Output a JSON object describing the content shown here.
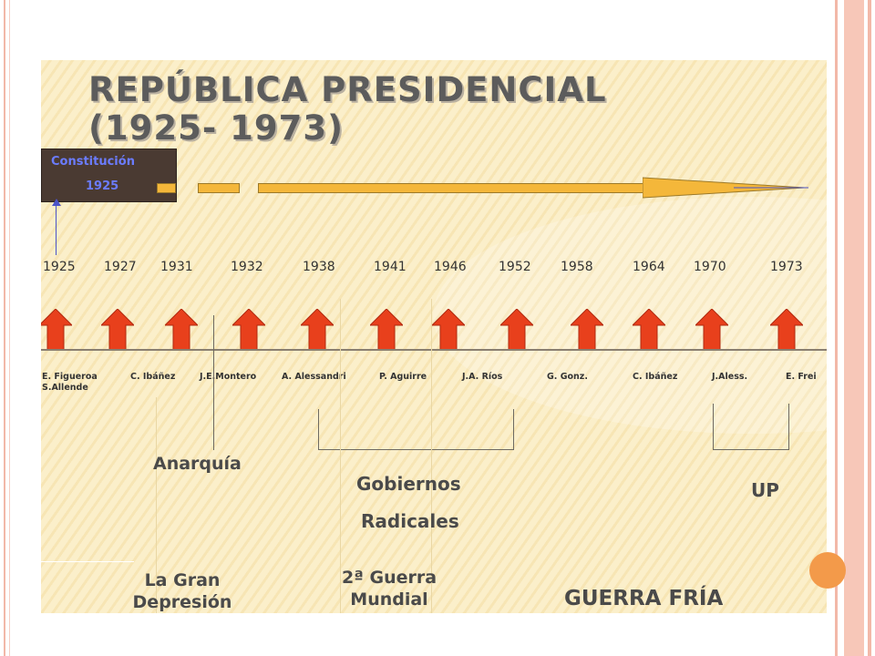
{
  "title": {
    "line1": "REPÚBLICA PRESIDENCIAL",
    "line2": "(1925- 1973)"
  },
  "constitution": {
    "label": "Constitución",
    "year": "1925"
  },
  "years": [
    "1925",
    "1927",
    "1931",
    "1932",
    "1938",
    "1941",
    "1946",
    "1952",
    "1958",
    "1964",
    "1970",
    "1973"
  ],
  "presidents": [
    [
      "E. Figueroa",
      "S.Allende"
    ],
    [
      "C. Ibáñez"
    ],
    [
      "J.E.Montero"
    ],
    [
      "A. Alessandri"
    ],
    [
      "P. Aguirre"
    ],
    [
      "J.A. Ríos"
    ],
    [
      "G. Gonz."
    ],
    [
      "C. Ibáñez"
    ],
    [
      "J.Aless."
    ],
    [
      "E. Frei"
    ]
  ],
  "labels": {
    "anarquia": "Anarquía",
    "radicales_1": "Gobiernos",
    "radicales_2": "Radicales",
    "up": "UP"
  },
  "periods": {
    "depresion_1": "La Gran",
    "depresion_2": "Depresión",
    "guerra_1": "2ª Guerra",
    "guerra_2": "Mundial",
    "fria": "GUERRA  FRÍA"
  },
  "colors": {
    "arrow_red": "#e8401c",
    "timeline_yellow": "#f4b73a",
    "box_brown": "#4a3a32",
    "box_text": "#6b7cff"
  }
}
